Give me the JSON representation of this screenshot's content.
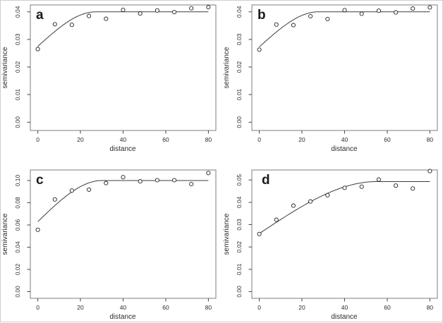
{
  "colors": {
    "background": "#ffffff",
    "axis_box": "#7d7d7d",
    "tick": "#474747",
    "text": "#2b2b2b",
    "fit_line": "#3c3c3c",
    "point_stroke": "#222222"
  },
  "chart_data": [
    {
      "type": "scatter",
      "panel_label": "a",
      "xlabel": "distance",
      "ylabel": "semivariance",
      "x": [
        0,
        8,
        16,
        24,
        32,
        40,
        48,
        56,
        64,
        72,
        80
      ],
      "y": [
        0.0265,
        0.0355,
        0.0353,
        0.0385,
        0.0375,
        0.0407,
        0.0394,
        0.0405,
        0.0399,
        0.0413,
        0.0417
      ],
      "marker": "open-circle",
      "grid": false,
      "fit_line": {
        "model": "spherical",
        "nugget": 0.0275,
        "sill": 0.04,
        "range": 27
      },
      "xlim": [
        -3.5,
        83.5
      ],
      "ylim": [
        -0.003,
        0.0425
      ],
      "xticks": {
        "values": [
          0,
          20,
          40,
          60,
          80
        ],
        "labels": [
          "0",
          "20",
          "40",
          "60",
          "80"
        ]
      },
      "yticks": {
        "values": [
          0.0,
          0.01,
          0.02,
          0.03,
          0.04
        ],
        "labels": [
          "0.00",
          "0.01",
          "0.02",
          "0.03",
          "0.04"
        ]
      }
    },
    {
      "type": "scatter",
      "panel_label": "b",
      "xlabel": "distance",
      "ylabel": "semivariance",
      "x": [
        0,
        8,
        16,
        24,
        32,
        40,
        48,
        56,
        64,
        72,
        80
      ],
      "y": [
        0.0263,
        0.0354,
        0.0352,
        0.0384,
        0.0374,
        0.0406,
        0.0393,
        0.0404,
        0.0398,
        0.0412,
        0.0416
      ],
      "marker": "open-circle",
      "grid": false,
      "fit_line": {
        "model": "spherical",
        "nugget": 0.0273,
        "sill": 0.04,
        "range": 27.5
      },
      "xlim": [
        -3.5,
        83.5
      ],
      "ylim": [
        -0.003,
        0.0425
      ],
      "xticks": {
        "values": [
          0,
          20,
          40,
          60,
          80
        ],
        "labels": [
          "0",
          "20",
          "40",
          "60",
          "80"
        ]
      },
      "yticks": {
        "values": [
          0.0,
          0.01,
          0.02,
          0.03,
          0.04
        ],
        "labels": [
          "0.00",
          "0.01",
          "0.02",
          "0.03",
          "0.04"
        ]
      }
    },
    {
      "type": "scatter",
      "panel_label": "c",
      "xlabel": "distance",
      "ylabel": "semivariance",
      "x": [
        0,
        8,
        16,
        24,
        32,
        40,
        48,
        56,
        64,
        72,
        80
      ],
      "y": [
        0.0557,
        0.083,
        0.091,
        0.0918,
        0.0977,
        0.103,
        0.0993,
        0.1003,
        0.1003,
        0.0968,
        0.1068
      ],
      "marker": "open-circle",
      "grid": false,
      "fit_line": {
        "model": "spherical",
        "nugget": 0.063,
        "sill": 0.1,
        "range": 30
      },
      "xlim": [
        -3.5,
        83.5
      ],
      "ylim": [
        -0.006,
        0.1095
      ],
      "xticks": {
        "values": [
          0,
          20,
          40,
          60,
          80
        ],
        "labels": [
          "0",
          "20",
          "40",
          "60",
          "80"
        ]
      },
      "yticks": {
        "values": [
          0.0,
          0.02,
          0.04,
          0.06,
          0.08,
          0.1
        ],
        "labels": [
          "0.00",
          "0.02",
          "0.04",
          "0.06",
          "0.08",
          "0.10"
        ]
      }
    },
    {
      "type": "scatter",
      "panel_label": "d",
      "xlabel": "distance",
      "ylabel": "semivariance",
      "x": [
        0,
        8,
        16,
        24,
        32,
        40,
        48,
        56,
        64,
        72,
        80
      ],
      "y": [
        0.0258,
        0.0322,
        0.0385,
        0.0404,
        0.0432,
        0.0465,
        0.047,
        0.0502,
        0.0475,
        0.0462,
        0.054
      ],
      "marker": "open-circle",
      "grid": false,
      "fit_line": {
        "model": "spherical",
        "nugget": 0.026,
        "sill": 0.0493,
        "range": 55
      },
      "xlim": [
        -3.5,
        83.5
      ],
      "ylim": [
        -0.003,
        0.0545
      ],
      "xticks": {
        "values": [
          0,
          20,
          40,
          60,
          80
        ],
        "labels": [
          "0",
          "20",
          "40",
          "60",
          "80"
        ]
      },
      "yticks": {
        "values": [
          0.0,
          0.01,
          0.02,
          0.03,
          0.04,
          0.05
        ],
        "labels": [
          "0.00",
          "0.01",
          "0.02",
          "0.03",
          "0.04",
          "0.05"
        ]
      }
    }
  ]
}
